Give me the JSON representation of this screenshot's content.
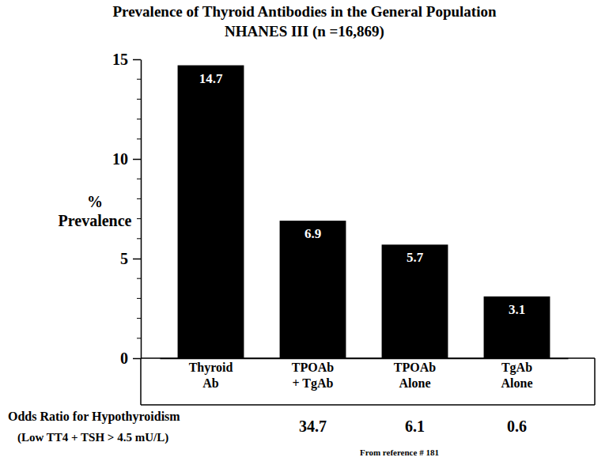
{
  "chart_data": {
    "type": "bar",
    "title": "Prevalence of Thyroid Antibodies in the General Population",
    "subtitle": "NHANES III  (n =16,869)",
    "y_label": "% Prevalence",
    "categories": [
      "Thyroid Ab",
      "TPOAb + TgAb",
      "TPOAb Alone",
      "TgAb Alone"
    ],
    "values": [
      14.7,
      6.9,
      5.7,
      3.1
    ],
    "color": "#000000",
    "ylim": [
      0,
      15
    ],
    "yticks": [
      0,
      5,
      10,
      15
    ],
    "y_minor_ticks": [
      1,
      2,
      3,
      4,
      6,
      7,
      8,
      9,
      11,
      12,
      13,
      14
    ],
    "data_labels": true,
    "odds_ratio": {
      "title": "Odds Ratio for Hypothyroidism",
      "subtitle": "(Low TT4 + TSH > 4.5 mU/L)",
      "values": [
        null,
        34.7,
        6.1,
        0.6
      ]
    },
    "source": "From reference # 181"
  }
}
